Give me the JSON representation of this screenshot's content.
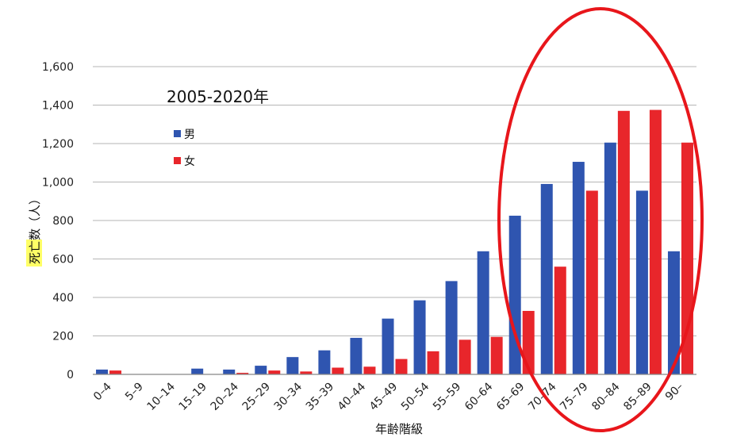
{
  "chart_data": {
    "type": "bar",
    "title": "",
    "annotation": "2005-2020年",
    "xlabel": "年齢階級",
    "ylabel": "死亡数（人）",
    "ylim": [
      0,
      1600
    ],
    "yticks": [
      0,
      200,
      400,
      600,
      800,
      1000,
      1200,
      1400,
      1600
    ],
    "ytick_labels": [
      "0",
      "200",
      "400",
      "600",
      "800",
      "1,000",
      "1,200",
      "1,400",
      "1,600"
    ],
    "grid": true,
    "legend_position": "upper-left",
    "categories": [
      "0–4",
      "5–9",
      "10–14",
      "15–19",
      "20–24",
      "25–29",
      "30–34",
      "35–39",
      "40–44",
      "45–49",
      "50–54",
      "55–59",
      "60–64",
      "65–69",
      "70–74",
      "75–79",
      "80–84",
      "85–89",
      "90–"
    ],
    "series": [
      {
        "name": "男",
        "color": "#2f55b0",
        "values": [
          25,
          0,
          0,
          30,
          25,
          45,
          90,
          125,
          190,
          290,
          385,
          485,
          640,
          825,
          990,
          1105,
          1205,
          955,
          640
        ]
      },
      {
        "name": "女",
        "color": "#e8262b",
        "values": [
          20,
          0,
          0,
          0,
          8,
          20,
          15,
          35,
          40,
          80,
          120,
          180,
          195,
          330,
          560,
          955,
          1370,
          1375,
          1205
        ]
      }
    ],
    "highlight": {
      "type": "ellipse",
      "color": "#e8161b"
    }
  }
}
